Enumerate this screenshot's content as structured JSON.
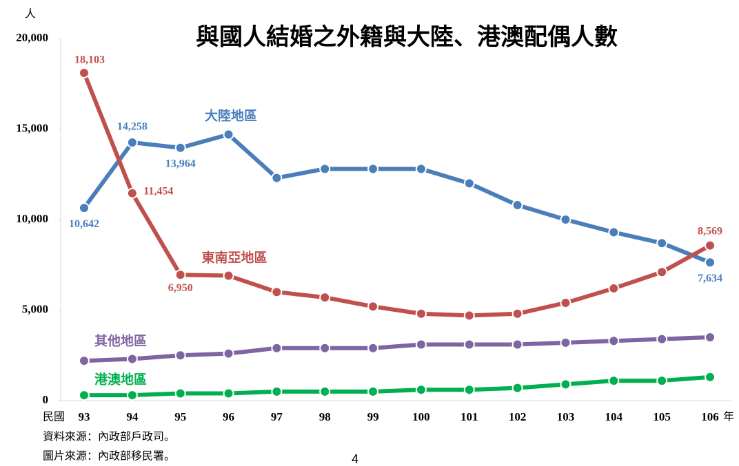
{
  "chart_data": {
    "type": "line",
    "title": "與國人結婚之外籍與大陸、港澳配偶人數",
    "y_unit": "人",
    "x_prefix": "民國",
    "x_suffix": "年",
    "categories": [
      "93",
      "94",
      "95",
      "96",
      "97",
      "98",
      "99",
      "100",
      "101",
      "102",
      "103",
      "104",
      "105",
      "106"
    ],
    "ylim": [
      0,
      20000
    ],
    "yticks": [
      0,
      {
        "value": 5000,
        "label": "5,000"
      },
      {
        "value": 10000,
        "label": "10,000"
      },
      {
        "value": 15000,
        "label": "15,000"
      },
      {
        "value": 20000,
        "label": "20,000"
      }
    ],
    "series": [
      {
        "name": "大陸地區",
        "color": "#4a7ebb",
        "values": [
          10642,
          14258,
          13964,
          14700,
          12300,
          12800,
          12800,
          12800,
          12000,
          10800,
          10000,
          9300,
          8700,
          7634
        ],
        "value_labels": [
          "10,642",
          "14,258",
          "13,964",
          null,
          null,
          null,
          null,
          null,
          null,
          null,
          null,
          null,
          null,
          "7,634"
        ]
      },
      {
        "name": "東南亞地區",
        "color": "#c0504d",
        "values": [
          18103,
          11454,
          6950,
          6900,
          6000,
          5700,
          5200,
          4800,
          4700,
          4800,
          5400,
          6200,
          7100,
          8569
        ],
        "value_labels": [
          "18,103",
          "11,454",
          "6,950",
          null,
          null,
          null,
          null,
          null,
          null,
          null,
          null,
          null,
          null,
          "8,569"
        ]
      },
      {
        "name": "其他地區",
        "color": "#8064a2",
        "values": [
          2200,
          2300,
          2500,
          2600,
          2900,
          2900,
          2900,
          3100,
          3100,
          3100,
          3200,
          3300,
          3400,
          3500
        ]
      },
      {
        "name": "港澳地區",
        "color": "#00b050",
        "values": [
          300,
          300,
          400,
          400,
          500,
          500,
          500,
          600,
          600,
          700,
          900,
          1100,
          1100,
          1300
        ]
      }
    ]
  },
  "sources": [
    "資料來源：內政部戶政司。",
    "圖片來源：內政部移民署。"
  ],
  "page_number": "4"
}
